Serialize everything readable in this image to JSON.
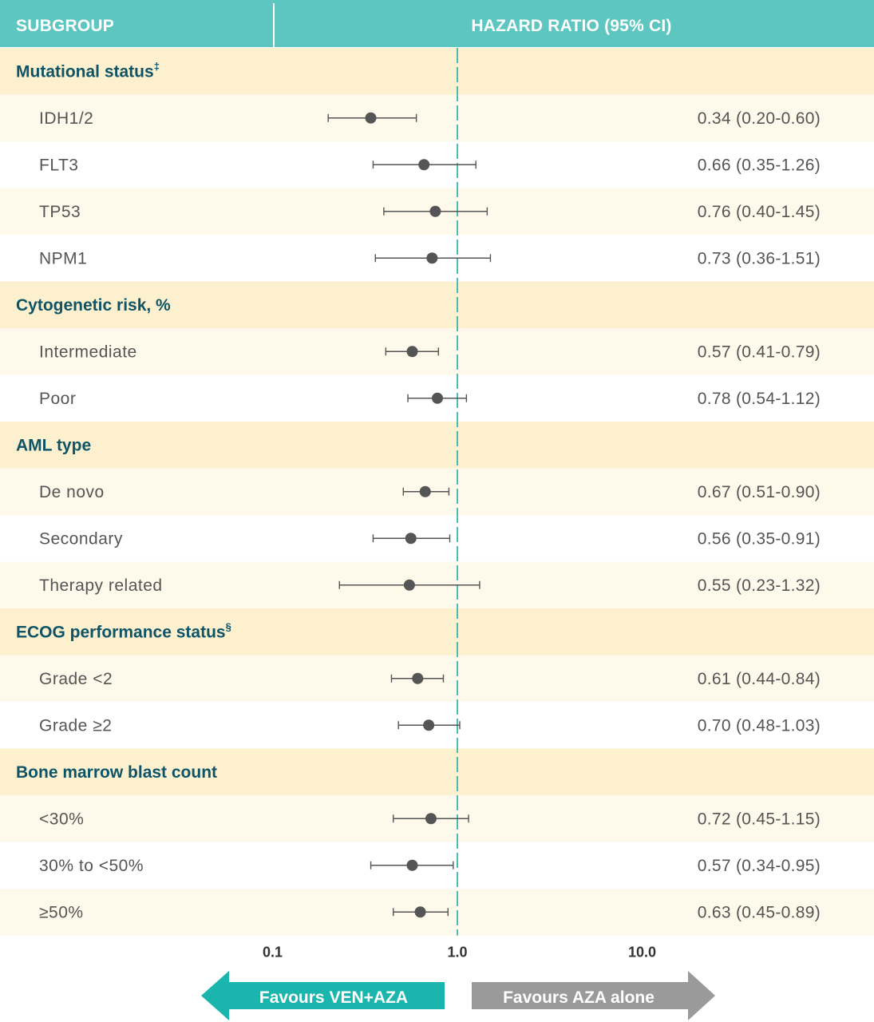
{
  "colors": {
    "header_bg": "#5ec6c0",
    "group_bg": "#fdf0cf",
    "row_alt_bg": "#fef9ea",
    "row_bg": "#ffffff",
    "group_text": "#0f5366",
    "marker": "#555555",
    "ref_line": "#3bb5b0",
    "favours_left": "#1ab5ad",
    "favours_right": "#9a9a9a"
  },
  "header": {
    "subgroup_label": "SUBGROUP",
    "hr_label": "HAZARD RATIO (95% CI)"
  },
  "chart_data": {
    "type": "forest",
    "x_scale": "log",
    "xlim": [
      0.1,
      10.0
    ],
    "reference_line": 1.0,
    "xticks": [
      {
        "value": 0.1,
        "label": "0.1"
      },
      {
        "value": 1.0,
        "label": "1.0"
      },
      {
        "value": 10.0,
        "label": "10.0"
      }
    ],
    "rows": [
      {
        "kind": "group",
        "label": "Mutational status",
        "sup": "‡"
      },
      {
        "kind": "item",
        "label": "IDH1/2",
        "hr": 0.34,
        "lo": 0.2,
        "hi": 0.6,
        "text": "0.34 (0.20-0.60)"
      },
      {
        "kind": "item",
        "label": "FLT3",
        "hr": 0.66,
        "lo": 0.35,
        "hi": 1.26,
        "text": "0.66 (0.35-1.26)"
      },
      {
        "kind": "item",
        "label": "TP53",
        "hr": 0.76,
        "lo": 0.4,
        "hi": 1.45,
        "text": "0.76 (0.40-1.45)"
      },
      {
        "kind": "item",
        "label": "NPM1",
        "hr": 0.73,
        "lo": 0.36,
        "hi": 1.51,
        "text": "0.73 (0.36-1.51)"
      },
      {
        "kind": "group",
        "label": "Cytogenetic risk, %",
        "sup": ""
      },
      {
        "kind": "item",
        "label": "Intermediate",
        "hr": 0.57,
        "lo": 0.41,
        "hi": 0.79,
        "text": "0.57 (0.41-0.79)"
      },
      {
        "kind": "item",
        "label": "Poor",
        "hr": 0.78,
        "lo": 0.54,
        "hi": 1.12,
        "text": "0.78 (0.54-1.12)"
      },
      {
        "kind": "group",
        "label": "AML type",
        "sup": ""
      },
      {
        "kind": "item",
        "label": "De novo",
        "hr": 0.67,
        "lo": 0.51,
        "hi": 0.9,
        "text": "0.67 (0.51-0.90)"
      },
      {
        "kind": "item",
        "label": "Secondary",
        "hr": 0.56,
        "lo": 0.35,
        "hi": 0.91,
        "text": "0.56 (0.35-0.91)"
      },
      {
        "kind": "item",
        "label": "Therapy related",
        "hr": 0.55,
        "lo": 0.23,
        "hi": 1.32,
        "text": "0.55 (0.23-1.32)"
      },
      {
        "kind": "group",
        "label": "ECOG performance status",
        "sup": "§"
      },
      {
        "kind": "item",
        "label": "Grade <2",
        "hr": 0.61,
        "lo": 0.44,
        "hi": 0.84,
        "text": "0.61 (0.44-0.84)"
      },
      {
        "kind": "item",
        "label": "Grade ≥2",
        "hr": 0.7,
        "lo": 0.48,
        "hi": 1.03,
        "text": "0.70 (0.48-1.03)"
      },
      {
        "kind": "group",
        "label": "Bone marrow blast count",
        "sup": ""
      },
      {
        "kind": "item",
        "label": "<30%",
        "hr": 0.72,
        "lo": 0.45,
        "hi": 1.15,
        "text": "0.72 (0.45-1.15)"
      },
      {
        "kind": "item",
        "label": "30% to <50%",
        "hr": 0.57,
        "lo": 0.34,
        "hi": 0.95,
        "text": "0.57 (0.34-0.95)"
      },
      {
        "kind": "item",
        "label": "≥50%",
        "hr": 0.63,
        "lo": 0.45,
        "hi": 0.89,
        "text": "0.63 (0.45-0.89)"
      }
    ],
    "favours": {
      "left": "Favours VEN+AZA",
      "right": "Favours AZA alone"
    }
  }
}
